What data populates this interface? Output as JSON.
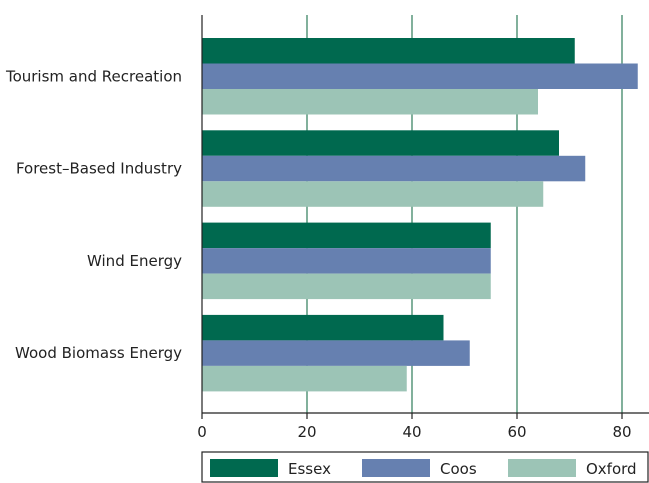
{
  "chart_data": {
    "type": "bar",
    "orientation": "horizontal",
    "categories": [
      "Tourism and Recreation",
      "Forest–Based Industry",
      "Wind Energy",
      "Wood Biomass Energy"
    ],
    "series": [
      {
        "name": "Essex",
        "color": "#00694f",
        "values": [
          71,
          68,
          55,
          46
        ]
      },
      {
        "name": "Coos",
        "color": "#6680b0",
        "values": [
          83,
          73,
          55,
          51
        ]
      },
      {
        "name": "Oxford",
        "color": "#9cc4b6",
        "values": [
          64,
          65,
          55,
          39
        ]
      }
    ],
    "xlim": [
      0,
      85
    ],
    "xticks": [
      0,
      20,
      40,
      60,
      80
    ],
    "title": "",
    "xlabel": "",
    "ylabel": "",
    "grid": "vertical",
    "gridline_color": "#2e7d5b",
    "legend_position": "bottom"
  }
}
